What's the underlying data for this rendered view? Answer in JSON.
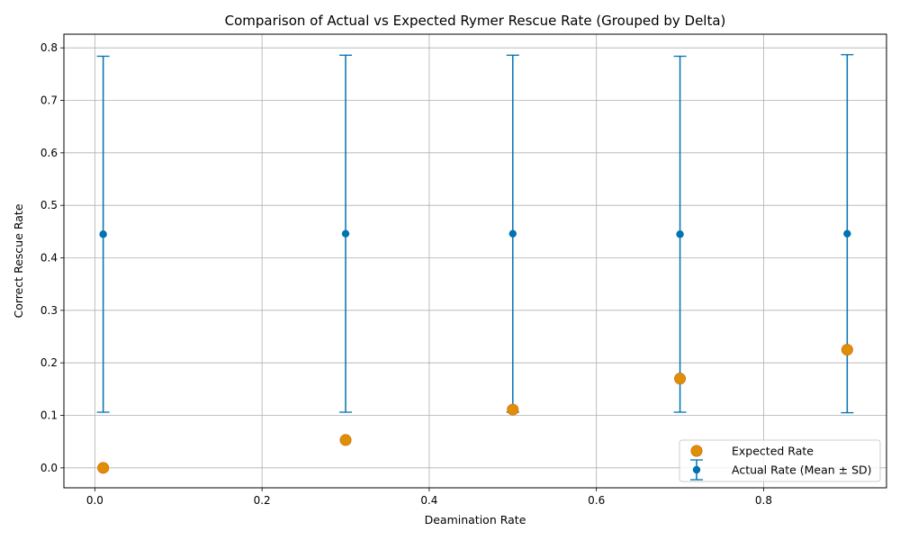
{
  "chart_data": {
    "type": "scatter",
    "title": "Comparison of Actual vs Expected Rymer Rescue Rate (Grouped by Delta)",
    "xlabel": "Deamination Rate",
    "ylabel": "Correct Rescue Rate",
    "xlim": [
      -0.037,
      0.947
    ],
    "ylim": [
      -0.038,
      0.826
    ],
    "x_ticks": [
      0.0,
      0.2,
      0.4,
      0.6,
      0.8
    ],
    "x_tick_labels": [
      "0.0",
      "0.2",
      "0.4",
      "0.6",
      "0.8"
    ],
    "y_ticks": [
      0.0,
      0.1,
      0.2,
      0.3,
      0.4,
      0.5,
      0.6,
      0.7,
      0.8
    ],
    "y_tick_labels": [
      "0.0",
      "0.1",
      "0.2",
      "0.3",
      "0.4",
      "0.5",
      "0.6",
      "0.7",
      "0.8"
    ],
    "grid": true,
    "legend_position": "bottom-right",
    "series": [
      {
        "name": "Actual Rate (Mean ± SD)",
        "kind": "errorbar",
        "color": "#0072B2",
        "x": [
          0.01,
          0.3,
          0.5,
          0.7,
          0.9
        ],
        "y": [
          0.445,
          0.446,
          0.446,
          0.445,
          0.446
        ],
        "yerr": [
          0.339,
          0.34,
          0.34,
          0.339,
          0.341
        ]
      },
      {
        "name": "Expected Rate",
        "kind": "scatter",
        "color": "#D55E00",
        "fill": "#DE8F05",
        "x": [
          0.01,
          0.3,
          0.5,
          0.7,
          0.9
        ],
        "y": [
          0.0,
          0.053,
          0.111,
          0.17,
          0.225
        ]
      }
    ]
  }
}
